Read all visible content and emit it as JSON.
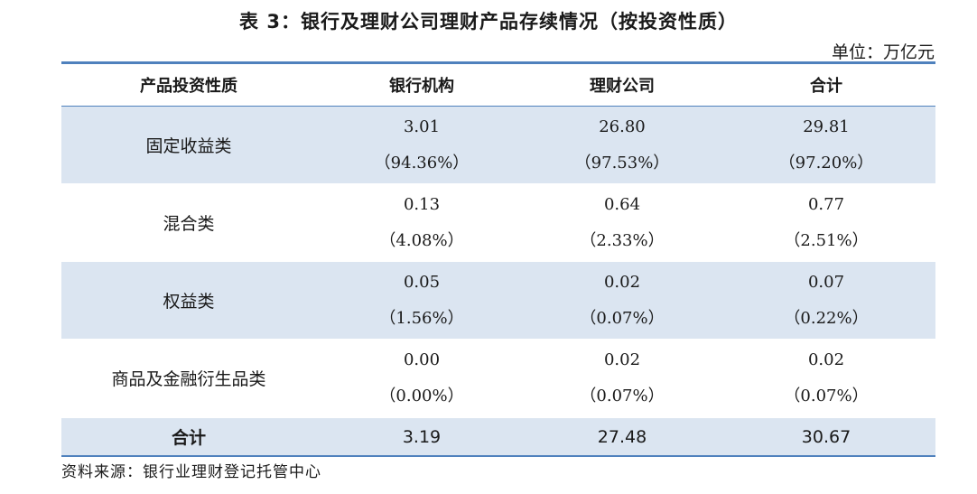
{
  "title": "表 3：银行及理财公司理财产品存续情况（按投资性质）",
  "unit": "单位：万亿元",
  "headers": [
    "产品投资性质",
    "银行机构",
    "理财公司",
    "合计"
  ],
  "rows": [
    {
      "label": "固定收益类",
      "cells": [
        {
          "value": "3.01",
          "pct": "（94.36%）"
        },
        {
          "value": "26.80",
          "pct": "（97.53%）"
        },
        {
          "value": "29.81",
          "pct": "（97.20%）"
        }
      ]
    },
    {
      "label": "混合类",
      "cells": [
        {
          "value": "0.13",
          "pct": "（4.08%）"
        },
        {
          "value": "0.64",
          "pct": "（2.33%）"
        },
        {
          "value": "0.77",
          "pct": "（2.51%）"
        }
      ]
    },
    {
      "label": "权益类",
      "cells": [
        {
          "value": "0.05",
          "pct": "（1.56%）"
        },
        {
          "value": "0.02",
          "pct": "（0.07%）"
        },
        {
          "value": "0.07",
          "pct": "（0.22%）"
        }
      ]
    },
    {
      "label": "商品及金融衍生品类",
      "cells": [
        {
          "value": "0.00",
          "pct": "（0.00%）"
        },
        {
          "value": "0.02",
          "pct": "（0.07%）"
        },
        {
          "value": "0.02",
          "pct": "（0.07%）"
        }
      ]
    }
  ],
  "total": {
    "label": "合计",
    "values": [
      "3.19",
      "27.48",
      "30.67"
    ]
  },
  "source": "资料来源：银行业理财登记托管中心",
  "colors": {
    "rule": "#4f81bd",
    "shade": "#dbe5f1"
  }
}
